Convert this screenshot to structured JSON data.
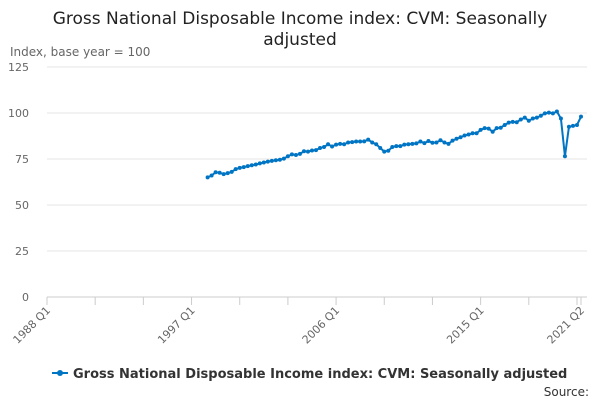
{
  "chart_data": {
    "type": "line",
    "title": [
      "Gross National Disposable Income index: CVM: Seasonally",
      "adjusted"
    ],
    "ylabel": "Index, base year = 100",
    "xlabel": "",
    "ylim": [
      0,
      125
    ],
    "yticks": [
      "0",
      "25",
      "50",
      "75",
      "100",
      "125"
    ],
    "xrange": [
      "1988 Q1",
      "2021 Q2"
    ],
    "xticks": [
      {
        "label": "1988 Q1",
        "quarter_index": 0
      },
      {
        "label": "1997 Q1",
        "quarter_index": 36
      },
      {
        "label": "2006 Q1",
        "quarter_index": 72
      },
      {
        "label": "2015 Q1",
        "quarter_index": 108
      },
      {
        "label": "2021 Q2",
        "quarter_index": 133
      }
    ],
    "grid": true,
    "legend_position": "bottom",
    "series": [
      {
        "name": "Gross National Disposable Income index: CVM: Seasonally adjusted",
        "color": "#0075c4",
        "start": "1998 Q1",
        "start_quarter_index": 40,
        "values": [
          65.0,
          66.0,
          67.8,
          67.5,
          66.8,
          67.3,
          68.0,
          69.5,
          70.2,
          70.6,
          71.1,
          71.6,
          72.0,
          72.6,
          73.1,
          73.6,
          74.0,
          74.3,
          74.6,
          75.2,
          76.5,
          77.5,
          77.2,
          77.8,
          79.2,
          79.0,
          79.6,
          79.8,
          81.0,
          81.5,
          83.0,
          81.8,
          82.8,
          83.2,
          83.0,
          84.0,
          84.2,
          84.5,
          84.5,
          84.6,
          85.5,
          84.0,
          83.0,
          81.0,
          79.0,
          79.5,
          81.5,
          82.0,
          82.0,
          82.8,
          83.0,
          83.2,
          83.5,
          84.5,
          83.6,
          84.8,
          83.8,
          84.0,
          85.2,
          84.0,
          83.2,
          85.0,
          86.0,
          86.8,
          87.8,
          88.3,
          89.0,
          89.0,
          90.8,
          91.8,
          91.5,
          89.8,
          91.8,
          92.0,
          93.5,
          94.8,
          95.2,
          95.0,
          96.5,
          97.5,
          95.8,
          97.0,
          97.5,
          98.5,
          99.8,
          100.2,
          99.8,
          100.8,
          97.0,
          76.5,
          92.5,
          93.0,
          93.5,
          98.0
        ]
      }
    ]
  },
  "source_label": "Source:"
}
